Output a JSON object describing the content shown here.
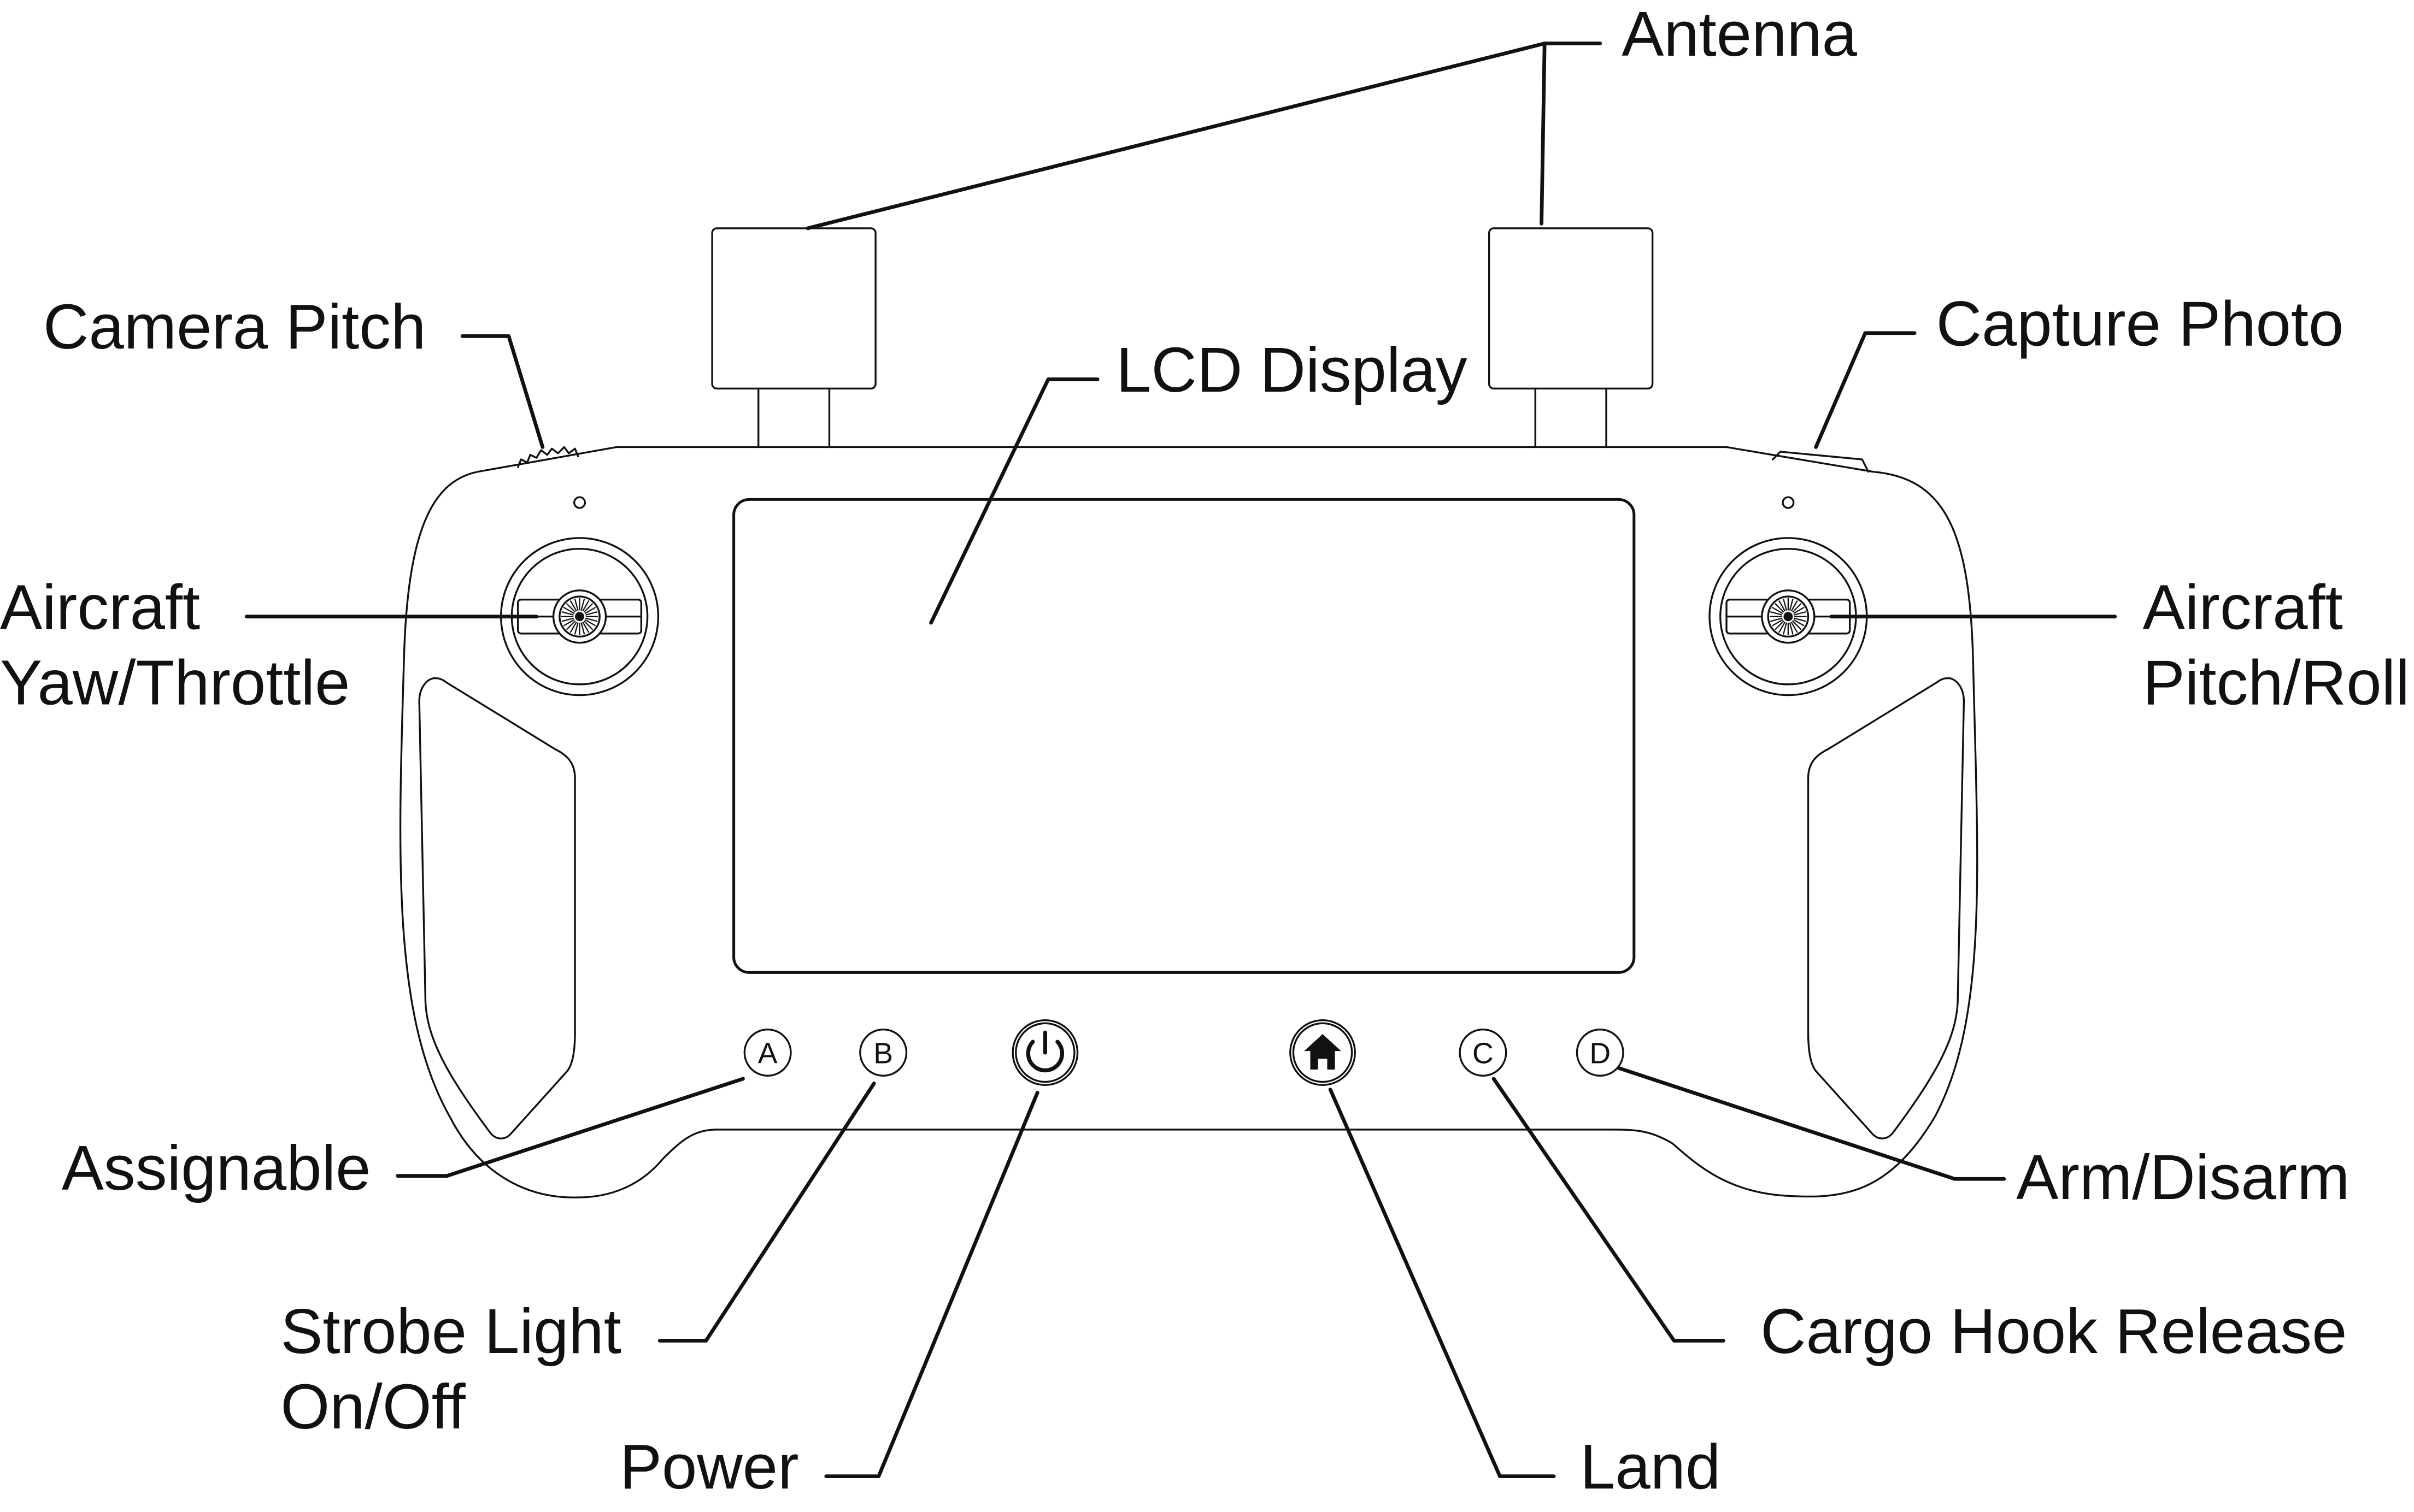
{
  "labels": {
    "antenna": "Antenna",
    "camera_pitch": "Camera Pitch",
    "capture_photo": "Capture Photo",
    "lcd_display": "LCD Display",
    "yaw_throttle_line1": "Aircraft",
    "yaw_throttle_line2": "Yaw/Throttle",
    "pitch_roll_line1": "Aircraft",
    "pitch_roll_line2": "Pitch/Roll",
    "assignable": "Assignable",
    "strobe_line1": "Strobe Light",
    "strobe_line2": "On/Off",
    "power": "Power",
    "land": "Land",
    "cargo_hook": "Cargo Hook Release",
    "arm_disarm": "Arm/Disarm"
  },
  "buttons": {
    "a": "A",
    "b": "B",
    "c": "C",
    "d": "D"
  },
  "icons": {
    "power": "power-icon",
    "home": "home-icon"
  },
  "colors": {
    "line": "#111111",
    "background": "#ffffff"
  }
}
